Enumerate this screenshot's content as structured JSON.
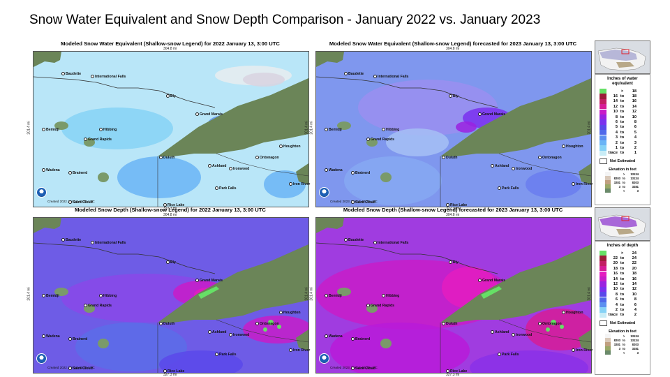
{
  "slide_title": "Snow Water Equivalent and Snow Depth Comparison - January 2022 vs. January 2023",
  "panels": [
    {
      "title": "Modeled Snow Water Equivalent (Shallow-snow Legend) for 2022 January 13, 3:00 UTC",
      "top_dim": "304.8 mi",
      "bottom_dim": "327.3 mi",
      "side_dim": "201.4 mi",
      "created": "Created 2022 Jan 13, 12:22 UTC"
    },
    {
      "title": "Modeled Snow Water Equivalent (Shallow-snow Legend) forecasted for 2023 January 13, 3:00 UTC",
      "top_dim": "304.8 mi",
      "bottom_dim": "327.3 mi",
      "side_dim": "201.4 mi",
      "created": "Created 2023 Jan 12, 13:34 UTC"
    },
    {
      "title": "Modeled Snow Depth (Shallow-snow Legend) for 2022 January 13, 3:00 UTC",
      "top_dim": "304.8 mi",
      "bottom_dim": "327.3 mi",
      "side_dim": "201.4 mi",
      "created": "Created 2022 Jan 13, 12:21 UTC"
    },
    {
      "title": "Modeled Snow Depth (Shallow-snow Legend) forecasted for 2023 January 13, 3:00 UTC",
      "top_dim": "304.8 mi",
      "bottom_dim": "327.3 mi",
      "side_dim": "201.4 mi",
      "created": "Created 2023 Jan 12, 13:33 UTC"
    }
  ],
  "cities": [
    {
      "name": "Baudette"
    },
    {
      "name": "International Falls"
    },
    {
      "name": "Ely"
    },
    {
      "name": "Grand Marais"
    },
    {
      "name": "Bemidji"
    },
    {
      "name": "Hibbing"
    },
    {
      "name": "Grand Rapids"
    },
    {
      "name": "Duluth"
    },
    {
      "name": "Ashland"
    },
    {
      "name": "Ironwood"
    },
    {
      "name": "Ontonagon"
    },
    {
      "name": "Houghton"
    },
    {
      "name": "Wadena"
    },
    {
      "name": "Brainerd"
    },
    {
      "name": "Park Falls"
    },
    {
      "name": "Iron River"
    },
    {
      "name": "Rice Lake"
    },
    {
      "name": "Saint Cloud"
    }
  ],
  "legend_swe": {
    "title_line1": "Inches of water",
    "title_line2": "equivalent",
    "rows": [
      {
        "lo": "",
        "to": ">",
        "hi": "18",
        "color": "#66e066"
      },
      {
        "lo": "16",
        "to": "to",
        "hi": "18",
        "color": "#9c1c3a"
      },
      {
        "lo": "14",
        "to": "to",
        "hi": "16",
        "color": "#c21e63"
      },
      {
        "lo": "12",
        "to": "to",
        "hi": "14",
        "color": "#d61c96"
      },
      {
        "lo": "10",
        "to": "to",
        "hi": "12",
        "color": "#c81cc8"
      },
      {
        "lo": "8",
        "to": "to",
        "hi": "10",
        "color": "#9a22e0"
      },
      {
        "lo": "6",
        "to": "to",
        "hi": "8",
        "color": "#7a30ee"
      },
      {
        "lo": "5",
        "to": "to",
        "hi": "6",
        "color": "#5a48ea"
      },
      {
        "lo": "4",
        "to": "to",
        "hi": "5",
        "color": "#5068ea"
      },
      {
        "lo": "3",
        "to": "to",
        "hi": "4",
        "color": "#5c90f0"
      },
      {
        "lo": "2",
        "to": "to",
        "hi": "3",
        "color": "#6ab4f6"
      },
      {
        "lo": "1",
        "to": "to",
        "hi": "2",
        "color": "#86d2f6"
      },
      {
        "lo": "trace",
        "to": "to",
        "hi": "1",
        "color": "#c8ecf6"
      }
    ],
    "not_estimated": "Not Estimated",
    "elevation_title": "Elevation in feet",
    "elevation_rows": [
      {
        "lo": "",
        "to": ">",
        "hi": "13124",
        "color": "#f4f4f4"
      },
      {
        "lo": "8203",
        "to": "to",
        "hi": "13124",
        "color": "#d8c8b8"
      },
      {
        "lo": "3281",
        "to": "to",
        "hi": "8203",
        "color": "#c0a080"
      },
      {
        "lo": "3",
        "to": "to",
        "hi": "3281",
        "color": "#9aa868"
      },
      {
        "lo": "",
        "to": "<",
        "hi": "3",
        "color": "#6a8a6a"
      }
    ]
  },
  "legend_depth": {
    "title_line1": "Inches of depth",
    "title_line2": "",
    "rows": [
      {
        "lo": "",
        "to": ">",
        "hi": "24",
        "color": "#66e066"
      },
      {
        "lo": "22",
        "to": "to",
        "hi": "24",
        "color": "#9c1c3a"
      },
      {
        "lo": "20",
        "to": "to",
        "hi": "22",
        "color": "#c21e63"
      },
      {
        "lo": "18",
        "to": "to",
        "hi": "20",
        "color": "#d61c96"
      },
      {
        "lo": "16",
        "to": "to",
        "hi": "18",
        "color": "#e41cc0"
      },
      {
        "lo": "14",
        "to": "to",
        "hi": "16",
        "color": "#c81cc8"
      },
      {
        "lo": "12",
        "to": "to",
        "hi": "14",
        "color": "#9a22e0"
      },
      {
        "lo": "10",
        "to": "to",
        "hi": "12",
        "color": "#7a30ee"
      },
      {
        "lo": "8",
        "to": "to",
        "hi": "10",
        "color": "#5a48ea"
      },
      {
        "lo": "6",
        "to": "to",
        "hi": "8",
        "color": "#5068ea"
      },
      {
        "lo": "4",
        "to": "to",
        "hi": "6",
        "color": "#5c90f0"
      },
      {
        "lo": "2",
        "to": "to",
        "hi": "4",
        "color": "#86d2f6"
      },
      {
        "lo": "trace",
        "to": "to",
        "hi": "2",
        "color": "#c8ecf6"
      }
    ],
    "not_estimated": "Not Estimated",
    "elevation_title": "Elevation in feet",
    "elevation_rows": [
      {
        "lo": "",
        "to": ">",
        "hi": "13124",
        "color": "#f4f4f4"
      },
      {
        "lo": "8203",
        "to": "to",
        "hi": "13124",
        "color": "#d8c8b8"
      },
      {
        "lo": "3281",
        "to": "to",
        "hi": "8203",
        "color": "#c0a080"
      },
      {
        "lo": "3",
        "to": "to",
        "hi": "3281",
        "color": "#9aa868"
      },
      {
        "lo": "",
        "to": "<",
        "hi": "3",
        "color": "#6a8a6a"
      }
    ]
  },
  "colors": {
    "lake": "#6b8558",
    "swe2022_base": "#b9e6f8",
    "swe2023_base": "#7f97ee",
    "depth2022_base": "#6e5ce6",
    "depth2023_base": "#a03ce0",
    "hot": "#e41cc0",
    "green": "#66e066"
  }
}
